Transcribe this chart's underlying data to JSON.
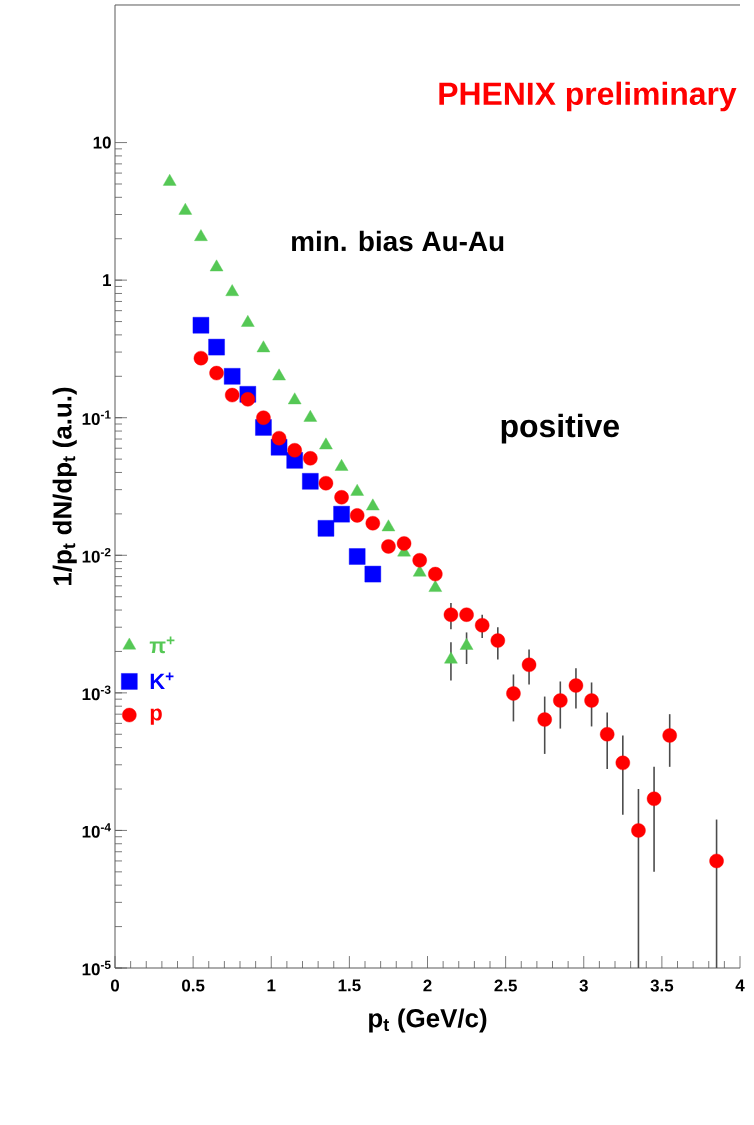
{
  "chart_data": {
    "type": "scatter",
    "xlabel": "p$_{t}$ (GeV/c)",
    "ylabel": "1/p$_{t}$ dN/dp$_{t}$ (a.u.)",
    "annotations": [
      "PHENIX preliminary",
      "min. bias Au-Au",
      "positive"
    ],
    "log": "y",
    "xlim": [
      0,
      4
    ],
    "xticks": [
      0,
      0.5,
      1,
      1.5,
      2,
      2.5,
      3,
      3.5,
      4
    ],
    "ylim": [
      1e-05,
      100
    ],
    "yticks": [
      {
        "value": 1e-05,
        "label": "10$^{-5}$"
      },
      {
        "value": 0.0001,
        "label": "10$^{-4}$"
      },
      {
        "value": 0.001,
        "label": "10$^{-3}$"
      },
      {
        "value": 0.01,
        "label": "10$^{-2}$"
      },
      {
        "value": 0.1,
        "label": "10$^{-1}$"
      },
      1,
      10
    ],
    "legend": "left",
    "series": [
      {
        "name": "π$^{+}$",
        "color": "#55c855",
        "marker": "triangle",
        "x": [
          0.35,
          0.45,
          0.55,
          0.65,
          0.75,
          0.85,
          0.95,
          1.05,
          1.15,
          1.25,
          1.35,
          1.45,
          1.55,
          1.65,
          1.75,
          1.85,
          1.95,
          2.05,
          2.15,
          2.25
        ],
        "values": [
          5.2,
          3.2,
          2.06,
          1.24,
          0.82,
          0.49,
          0.32,
          0.2,
          0.134,
          0.1,
          0.063,
          0.044,
          0.029,
          0.0227,
          0.016,
          0.0105,
          0.0075,
          0.0058,
          0.00175,
          0.0022
        ],
        "errors": [
          null,
          null,
          null,
          null,
          null,
          null,
          null,
          null,
          null,
          null,
          null,
          null,
          null,
          null,
          null,
          null,
          null,
          null,
          [
            0.00123,
            0.00233
          ],
          [
            0.00162,
            0.00275
          ]
        ]
      },
      {
        "name": "K$^{+}$",
        "color": "#0000ff",
        "marker": "square",
        "x": [
          0.55,
          0.65,
          0.75,
          0.85,
          0.95,
          1.05,
          1.15,
          1.25,
          1.35,
          1.45,
          1.55,
          1.65
        ],
        "values": [
          0.47,
          0.326,
          0.2,
          0.148,
          0.085,
          0.061,
          0.049,
          0.0345,
          0.0157,
          0.0199,
          0.0098,
          0.0073
        ]
      },
      {
        "name": "p",
        "color": "#ff0000",
        "marker": "circle",
        "x": [
          0.55,
          0.65,
          0.75,
          0.85,
          0.95,
          1.05,
          1.15,
          1.25,
          1.35,
          1.45,
          1.55,
          1.65,
          1.75,
          1.85,
          1.95,
          2.05,
          2.15,
          2.25,
          2.35,
          2.45,
          2.55,
          2.65,
          2.75,
          2.85,
          2.95,
          3.05,
          3.15,
          3.25,
          3.35,
          3.45,
          3.55,
          3.85
        ],
        "values": [
          0.271,
          0.211,
          0.146,
          0.136,
          0.1,
          0.071,
          0.058,
          0.0507,
          0.0334,
          0.0264,
          0.0195,
          0.0171,
          0.0116,
          0.0122,
          0.0092,
          0.0073,
          0.0037,
          0.0037,
          0.0031,
          0.0024,
          0.00099,
          0.0016,
          0.00064,
          0.00088,
          0.00113,
          0.00088,
          0.0005,
          0.00031,
          0.0001,
          0.00017,
          0.00049,
          6e-05
        ],
        "errors": [
          null,
          null,
          null,
          null,
          null,
          null,
          null,
          null,
          null,
          null,
          null,
          null,
          null,
          null,
          null,
          null,
          [
            0.0029,
            0.0045
          ],
          null,
          [
            0.0025,
            0.0037
          ],
          [
            0.00175,
            0.003
          ],
          [
            0.00062,
            0.00136
          ],
          [
            0.00115,
            0.00207
          ],
          [
            0.00036,
            0.00094
          ],
          [
            0.00055,
            0.00121
          ],
          [
            0.00077,
            0.00151
          ],
          [
            0.00057,
            0.00119
          ],
          [
            0.00028,
            0.00072
          ],
          [
            0.00013,
            0.00049
          ],
          [
            1e-05,
            0.0002
          ],
          [
            5e-05,
            0.00029
          ],
          [
            0.00029,
            0.0007
          ],
          [
            1e-05,
            0.00012
          ]
        ]
      }
    ]
  }
}
